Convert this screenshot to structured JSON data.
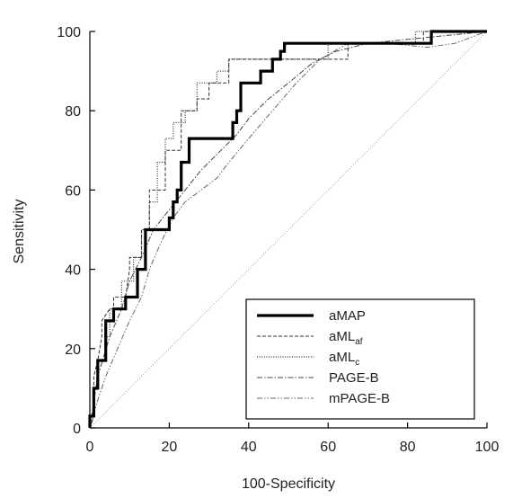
{
  "chart_data": {
    "type": "line",
    "subtype": "roc",
    "title": "",
    "xlabel": "100-Specificity",
    "ylabel": "Sensitivity",
    "xlim": [
      0,
      100
    ],
    "ylim": [
      0,
      100
    ],
    "xticks": [
      0,
      20,
      40,
      60,
      80,
      100
    ],
    "yticks": [
      0,
      20,
      40,
      60,
      80,
      100
    ],
    "grid": false,
    "reference_line": {
      "x": [
        0,
        100
      ],
      "y": [
        0,
        100
      ]
    },
    "legend": {
      "placement": "bottom-right"
    },
    "series": [
      {
        "name": "aMAP",
        "legend_base": "aMAP",
        "legend_sub": "",
        "style": "solid-thick",
        "color": "#000000",
        "x": [
          0,
          0,
          1,
          1,
          2,
          2,
          4,
          4,
          6,
          6,
          9,
          9,
          12,
          12,
          14,
          14,
          20,
          20,
          21,
          21,
          22,
          22,
          23,
          23,
          25,
          25,
          36,
          36,
          37,
          37,
          38,
          38,
          43,
          43,
          46,
          46,
          48,
          48,
          49,
          49,
          86,
          86,
          100
        ],
        "y": [
          0,
          3,
          3,
          10,
          10,
          17,
          17,
          27,
          27,
          30,
          30,
          33,
          33,
          40,
          40,
          50,
          50,
          53,
          53,
          57,
          57,
          60,
          60,
          67,
          67,
          73,
          73,
          77,
          77,
          80,
          80,
          87,
          87,
          90,
          90,
          93,
          93,
          95,
          95,
          97,
          97,
          100,
          100
        ]
      },
      {
        "name": "aMLaf",
        "legend_base": "aML",
        "legend_sub": "af",
        "style": "dashed",
        "color": "#333333",
        "x": [
          0,
          1,
          1,
          2,
          3,
          3,
          5,
          6,
          6,
          9,
          10,
          10,
          13,
          13,
          15,
          15,
          19,
          19,
          23,
          23,
          27,
          27,
          30,
          30,
          35,
          35,
          65,
          65,
          84,
          84,
          100
        ],
        "y": [
          0,
          3,
          13,
          17,
          23,
          27,
          30,
          30,
          33,
          33,
          40,
          43,
          43,
          50,
          50,
          60,
          60,
          70,
          70,
          80,
          80,
          83,
          83,
          87,
          87,
          93,
          93,
          97,
          97,
          100,
          100
        ]
      },
      {
        "name": "aMLc",
        "legend_base": "aML",
        "legend_sub": "c",
        "style": "dotted",
        "color": "#333333",
        "x": [
          0,
          1,
          1,
          2,
          2,
          4,
          4,
          5,
          5,
          8,
          8,
          11,
          11,
          13,
          13,
          15,
          15,
          17,
          17,
          19,
          19,
          21,
          21,
          24,
          24,
          27,
          27,
          32,
          32,
          35,
          35,
          60,
          60,
          82,
          82,
          100
        ],
        "y": [
          0,
          3,
          10,
          10,
          17,
          17,
          23,
          23,
          30,
          30,
          37,
          37,
          43,
          43,
          50,
          50,
          57,
          57,
          67,
          67,
          73,
          73,
          77,
          77,
          80,
          80,
          87,
          87,
          90,
          90,
          93,
          93,
          97,
          97,
          100,
          100
        ]
      },
      {
        "name": "PAGE-B",
        "legend_base": "PAGE-B",
        "legend_sub": "",
        "style": "dash-dot",
        "color": "#444444",
        "x": [
          0,
          2,
          5,
          8,
          10,
          13,
          16,
          20,
          24,
          28,
          33,
          37,
          40,
          45,
          50,
          56,
          62,
          70,
          80,
          90,
          100
        ],
        "y": [
          0,
          13,
          23,
          30,
          37,
          43,
          50,
          55,
          60,
          65,
          70,
          74,
          78,
          83,
          87,
          92,
          95,
          97,
          98,
          99,
          100
        ]
      },
      {
        "name": "mPAGE-B",
        "legend_base": "mPAGE-B",
        "legend_sub": "",
        "style": "dash-dot-dot",
        "color": "#666666",
        "x": [
          0,
          2,
          4,
          7,
          10,
          13,
          15,
          18,
          21,
          24,
          28,
          32,
          35,
          40,
          46,
          52,
          58,
          65,
          75,
          85,
          92,
          100
        ],
        "y": [
          0,
          7,
          13,
          20,
          27,
          33,
          40,
          47,
          53,
          57,
          60,
          63,
          67,
          73,
          80,
          87,
          93,
          97,
          97,
          96,
          97,
          100
        ]
      }
    ]
  }
}
